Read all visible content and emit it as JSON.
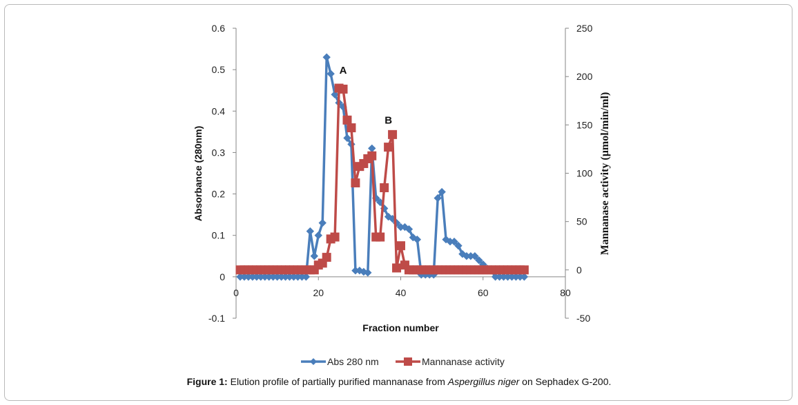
{
  "caption": {
    "label": "Figure 1:",
    "text_before": " Elution profile of partially purified mannanase from ",
    "organism": "Aspergillus niger",
    "text_after": " on Sephadex G-200."
  },
  "colors": {
    "abs": "#4A7EBB",
    "activity": "#BE4B48",
    "axis": "#868686"
  },
  "chart_data": {
    "type": "line",
    "xlabel": "Fraction number",
    "ylabel_left": "Absorbance (280nm)",
    "ylabel_right": "Mannanase activity (µmol/min/ml)",
    "xlim": [
      0,
      80
    ],
    "ylim_left": [
      -0.1,
      0.6
    ],
    "ylim_right": [
      -50,
      250
    ],
    "x_ticks": [
      0,
      20,
      40,
      60,
      80
    ],
    "y_left_ticks": [
      -0.1,
      0,
      0.1,
      0.2,
      0.3,
      0.4,
      0.5,
      0.6
    ],
    "y_left_tick_labels": [
      "-0.1",
      "0",
      "0.1",
      "0.2",
      "0.3",
      "0.4",
      "0.5",
      "0.6"
    ],
    "y_right_ticks": [
      -50,
      0,
      50,
      100,
      150,
      200,
      250
    ],
    "grid": false,
    "legend_position": "bottom",
    "annotations": [
      {
        "text": "A",
        "x": 26,
        "y_left": 0.49
      },
      {
        "text": "B",
        "x": 37,
        "y_left": 0.37
      }
    ],
    "series": [
      {
        "name": "Abs 280 nm",
        "axis": "left",
        "marker": "diamond",
        "x": [
          1,
          2,
          3,
          4,
          5,
          6,
          7,
          8,
          9,
          10,
          11,
          12,
          13,
          14,
          15,
          16,
          17,
          18,
          19,
          20,
          21,
          22,
          23,
          24,
          25,
          26,
          27,
          28,
          29,
          30,
          31,
          32,
          33,
          34,
          35,
          36,
          37,
          38,
          39,
          40,
          41,
          42,
          43,
          44,
          45,
          46,
          47,
          48,
          49,
          50,
          51,
          52,
          53,
          54,
          55,
          56,
          57,
          58,
          59,
          60,
          61,
          62,
          63,
          64,
          65,
          66,
          67,
          68,
          69,
          70
        ],
        "y": [
          0,
          0,
          0,
          0,
          0,
          0,
          0,
          0,
          0,
          0,
          0,
          0,
          0,
          0,
          0,
          0,
          0,
          0.11,
          0.05,
          0.1,
          0.13,
          0.53,
          0.49,
          0.44,
          0.42,
          0.41,
          0.335,
          0.32,
          0.015,
          0.015,
          0.012,
          0.01,
          0.31,
          0.19,
          0.18,
          0.165,
          0.145,
          0.14,
          0.13,
          0.12,
          0.12,
          0.115,
          0.095,
          0.09,
          0.005,
          0.005,
          0.005,
          0.005,
          0.19,
          0.205,
          0.09,
          0.085,
          0.085,
          0.075,
          0.055,
          0.05,
          0.05,
          0.05,
          0.04,
          0.03,
          0.02,
          0.015,
          0,
          0,
          0,
          0,
          0,
          0,
          0,
          0
        ]
      },
      {
        "name": "Mannanase activity",
        "axis": "right",
        "marker": "square",
        "x": [
          1,
          2,
          3,
          4,
          5,
          6,
          7,
          8,
          9,
          10,
          11,
          12,
          13,
          14,
          15,
          16,
          17,
          18,
          19,
          20,
          21,
          22,
          23,
          24,
          25,
          26,
          27,
          28,
          29,
          30,
          31,
          32,
          33,
          34,
          35,
          36,
          37,
          38,
          39,
          40,
          41,
          42,
          43,
          44,
          45,
          46,
          47,
          48,
          49,
          50,
          51,
          52,
          53,
          54,
          55,
          56,
          57,
          58,
          59,
          60,
          61,
          62,
          63,
          64,
          65,
          66,
          67,
          68,
          69,
          70
        ],
        "y": [
          0,
          0,
          0,
          0,
          0,
          0,
          0,
          0,
          0,
          0,
          0,
          0,
          0,
          0,
          0,
          0,
          0,
          0,
          0,
          5,
          7,
          13,
          32,
          34,
          188,
          187,
          155,
          147,
          90,
          107,
          110,
          115,
          118,
          34,
          34,
          85,
          127,
          140,
          2,
          25,
          5,
          0,
          0,
          0,
          0,
          0,
          0,
          0,
          0,
          0,
          0,
          0,
          0,
          0,
          0,
          0,
          0,
          0,
          0,
          0,
          0,
          0,
          0,
          0,
          0,
          0,
          0,
          0,
          0,
          0
        ]
      }
    ]
  }
}
